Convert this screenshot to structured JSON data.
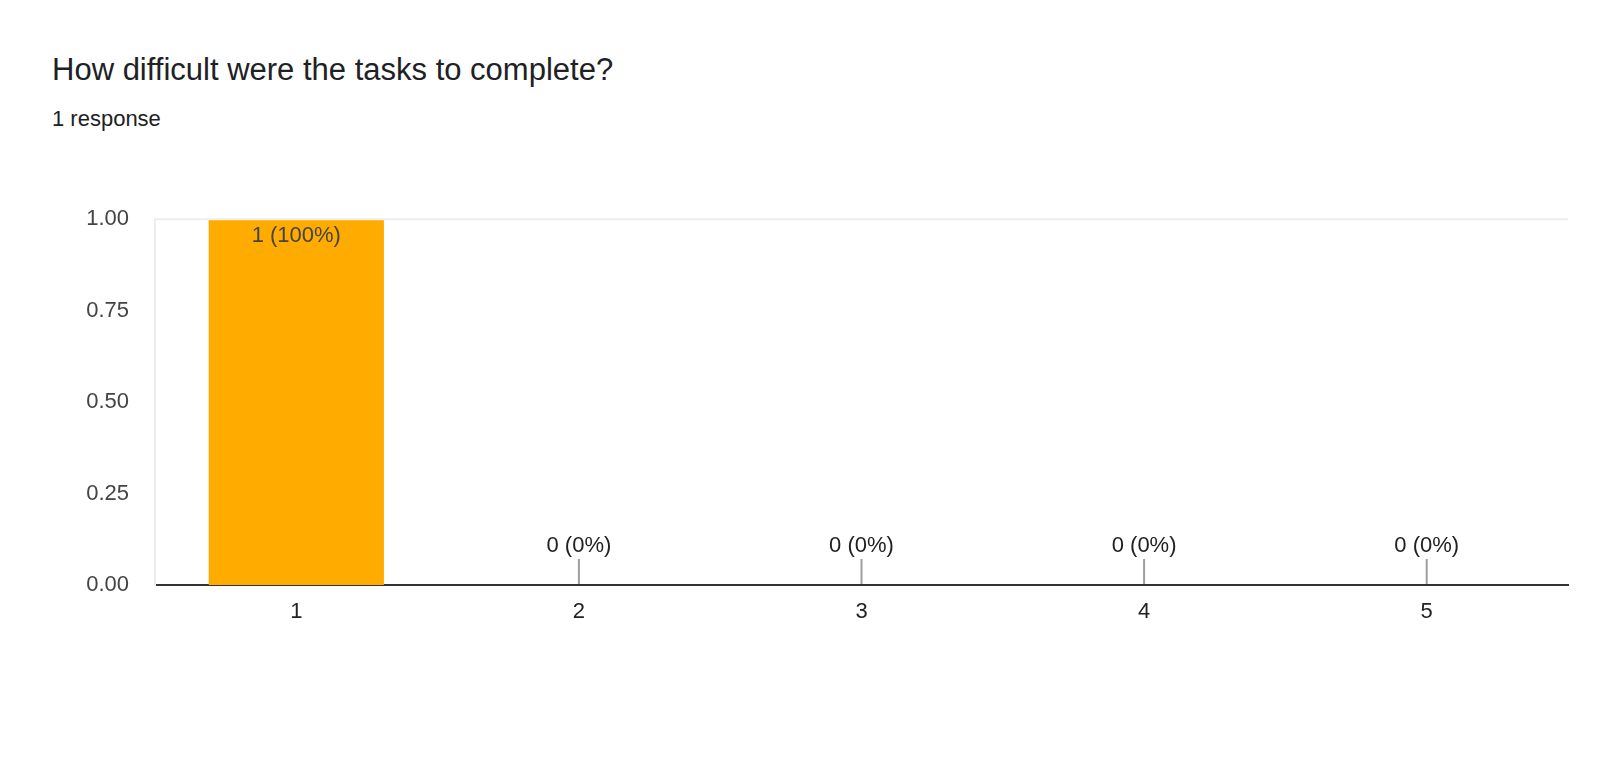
{
  "chart_data": {
    "type": "bar",
    "title": "How difficult were the tasks to complete?",
    "subtitle": "1 response",
    "categories": [
      "1",
      "2",
      "3",
      "4",
      "5"
    ],
    "values": [
      1,
      0,
      0,
      0,
      0
    ],
    "value_labels": [
      "1 (100%)",
      "0 (0%)",
      "0 (0%)",
      "0 (0%)",
      "0 (0%)"
    ],
    "data_labels": true,
    "color": "#ffab00",
    "ylim": [
      0,
      1
    ],
    "yticks": [
      {
        "value": 0,
        "label": "0.00"
      },
      {
        "value": 0.25,
        "label": "0.25"
      },
      {
        "value": 0.5,
        "label": "0.50"
      },
      {
        "value": 0.75,
        "label": "0.75"
      },
      {
        "value": 1,
        "label": "1.00"
      }
    ],
    "grid": false
  }
}
